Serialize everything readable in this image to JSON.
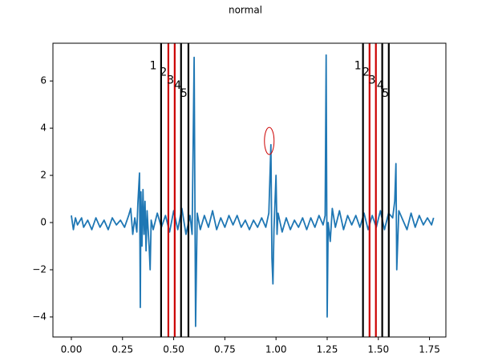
{
  "chart_data": {
    "type": "line",
    "title": "normal",
    "xlim": [
      -0.09,
      1.83
    ],
    "ylim": [
      -4.85,
      7.6
    ],
    "xticks": [
      {
        "value": 0,
        "label": "0.00"
      },
      {
        "value": 0.25,
        "label": "0.25"
      },
      {
        "value": 0.5,
        "label": "0.50"
      },
      {
        "value": 0.75,
        "label": "0.75"
      },
      {
        "value": 1,
        "label": "1.00"
      },
      {
        "value": 1.25,
        "label": "1.25"
      },
      {
        "value": 1.5,
        "label": "1.50"
      },
      {
        "value": 1.75,
        "label": "1.75"
      }
    ],
    "yticks": [
      {
        "value": -4,
        "label": "−4"
      },
      {
        "value": -2,
        "label": "−2"
      },
      0,
      2,
      4,
      6
    ],
    "series": [
      {
        "color": "#1f77b4",
        "x": [
          0.0,
          0.01,
          0.02,
          0.03,
          0.05,
          0.06,
          0.08,
          0.1,
          0.12,
          0.14,
          0.16,
          0.18,
          0.2,
          0.22,
          0.24,
          0.26,
          0.28,
          0.29,
          0.3,
          0.31,
          0.32,
          0.325,
          0.333,
          0.337,
          0.34,
          0.345,
          0.35,
          0.355,
          0.36,
          0.365,
          0.37,
          0.38,
          0.385,
          0.39,
          0.4,
          0.42,
          0.44,
          0.46,
          0.48,
          0.5,
          0.52,
          0.54,
          0.56,
          0.58,
          0.59,
          0.6,
          0.607,
          0.615,
          0.63,
          0.65,
          0.67,
          0.69,
          0.71,
          0.73,
          0.75,
          0.77,
          0.79,
          0.81,
          0.83,
          0.85,
          0.87,
          0.89,
          0.91,
          0.93,
          0.95,
          0.965,
          0.975,
          0.98,
          0.985,
          0.99,
          1.0,
          1.005,
          1.01,
          1.03,
          1.05,
          1.07,
          1.09,
          1.11,
          1.13,
          1.15,
          1.17,
          1.19,
          1.21,
          1.23,
          1.24,
          1.245,
          1.25,
          1.255,
          1.265,
          1.275,
          1.29,
          1.31,
          1.33,
          1.35,
          1.37,
          1.39,
          1.41,
          1.43,
          1.45,
          1.47,
          1.49,
          1.51,
          1.53,
          1.55,
          1.57,
          1.58,
          1.586,
          1.59,
          1.6,
          1.62,
          1.64,
          1.66,
          1.68,
          1.7,
          1.72,
          1.74,
          1.76,
          1.77
        ],
        "values": [
          0.3,
          -0.3,
          0.2,
          -0.1,
          0.2,
          -0.2,
          0.1,
          -0.3,
          0.2,
          -0.2,
          0.1,
          -0.3,
          0.2,
          -0.1,
          0.1,
          -0.2,
          0.3,
          0.6,
          -0.5,
          0.2,
          -0.4,
          0.8,
          2.1,
          -3.6,
          1.3,
          -1.0,
          1.4,
          -0.5,
          0.9,
          -1.2,
          0.5,
          -1.0,
          -2.0,
          0.1,
          -0.3,
          0.4,
          -0.2,
          0.3,
          -0.4,
          0.5,
          -0.3,
          0.6,
          -0.5,
          0.3,
          -0.5,
          7.0,
          -4.4,
          0.4,
          -0.3,
          0.3,
          -0.2,
          0.5,
          -0.3,
          0.2,
          -0.2,
          0.3,
          -0.1,
          0.3,
          -0.2,
          0.1,
          -0.3,
          0.1,
          -0.2,
          0.2,
          -0.2,
          0.4,
          3.3,
          -1.5,
          -2.6,
          -0.3,
          2.0,
          -0.5,
          0.4,
          -0.4,
          0.2,
          -0.3,
          0.1,
          -0.2,
          0.2,
          -0.3,
          0.2,
          -0.2,
          0.3,
          -0.1,
          0.3,
          7.1,
          -4.0,
          0.0,
          -0.8,
          0.6,
          -0.2,
          0.5,
          -0.3,
          0.3,
          -0.1,
          0.3,
          -0.2,
          0.4,
          -0.3,
          0.3,
          -0.2,
          0.5,
          -0.3,
          0.4,
          0.2,
          0.9,
          2.5,
          -2.0,
          0.5,
          0.1,
          -0.3,
          0.4,
          -0.2,
          0.3,
          -0.1,
          0.2,
          -0.1,
          0.2
        ]
      }
    ],
    "vlines": [
      {
        "x": 0.4385,
        "color": "#000000"
      },
      {
        "x": 0.474,
        "color": "#cc0000"
      },
      {
        "x": 0.505,
        "color": "#cc0000"
      },
      {
        "x": 0.536,
        "color": "#000000"
      },
      {
        "x": 0.572,
        "color": "#000000"
      },
      {
        "x": 1.425,
        "color": "#000000"
      },
      {
        "x": 1.457,
        "color": "#cc0000"
      },
      {
        "x": 1.488,
        "color": "#cc0000"
      },
      {
        "x": 1.519,
        "color": "#000000"
      },
      {
        "x": 1.551,
        "color": "#000000"
      }
    ],
    "annotations": [
      {
        "text": "1",
        "x": 0.4,
        "y": 6.64,
        "color": "#000000"
      },
      {
        "text": "2",
        "x": 0.45,
        "y": 6.37,
        "color": "#000000"
      },
      {
        "text": "3",
        "x": 0.485,
        "y": 6.03,
        "color": "#cc0000"
      },
      {
        "text": "4",
        "x": 0.52,
        "y": 5.8,
        "color": "#000000"
      },
      {
        "text": "5",
        "x": 0.55,
        "y": 5.46,
        "color": "#000000"
      },
      {
        "text": "1",
        "x": 1.4,
        "y": 6.64,
        "color": "#000000"
      },
      {
        "text": "2",
        "x": 1.44,
        "y": 6.37,
        "color": "#000000"
      },
      {
        "text": "3",
        "x": 1.47,
        "y": 6.03,
        "color": "#cc0000"
      },
      {
        "text": "4",
        "x": 1.51,
        "y": 5.8,
        "color": "#000000"
      },
      {
        "text": "5",
        "x": 1.535,
        "y": 5.46,
        "color": "#000000"
      }
    ],
    "ellipse": {
      "x": 0.967,
      "y": 3.46,
      "width": 0.047,
      "height": 1.15,
      "color": "#cc0000"
    }
  }
}
